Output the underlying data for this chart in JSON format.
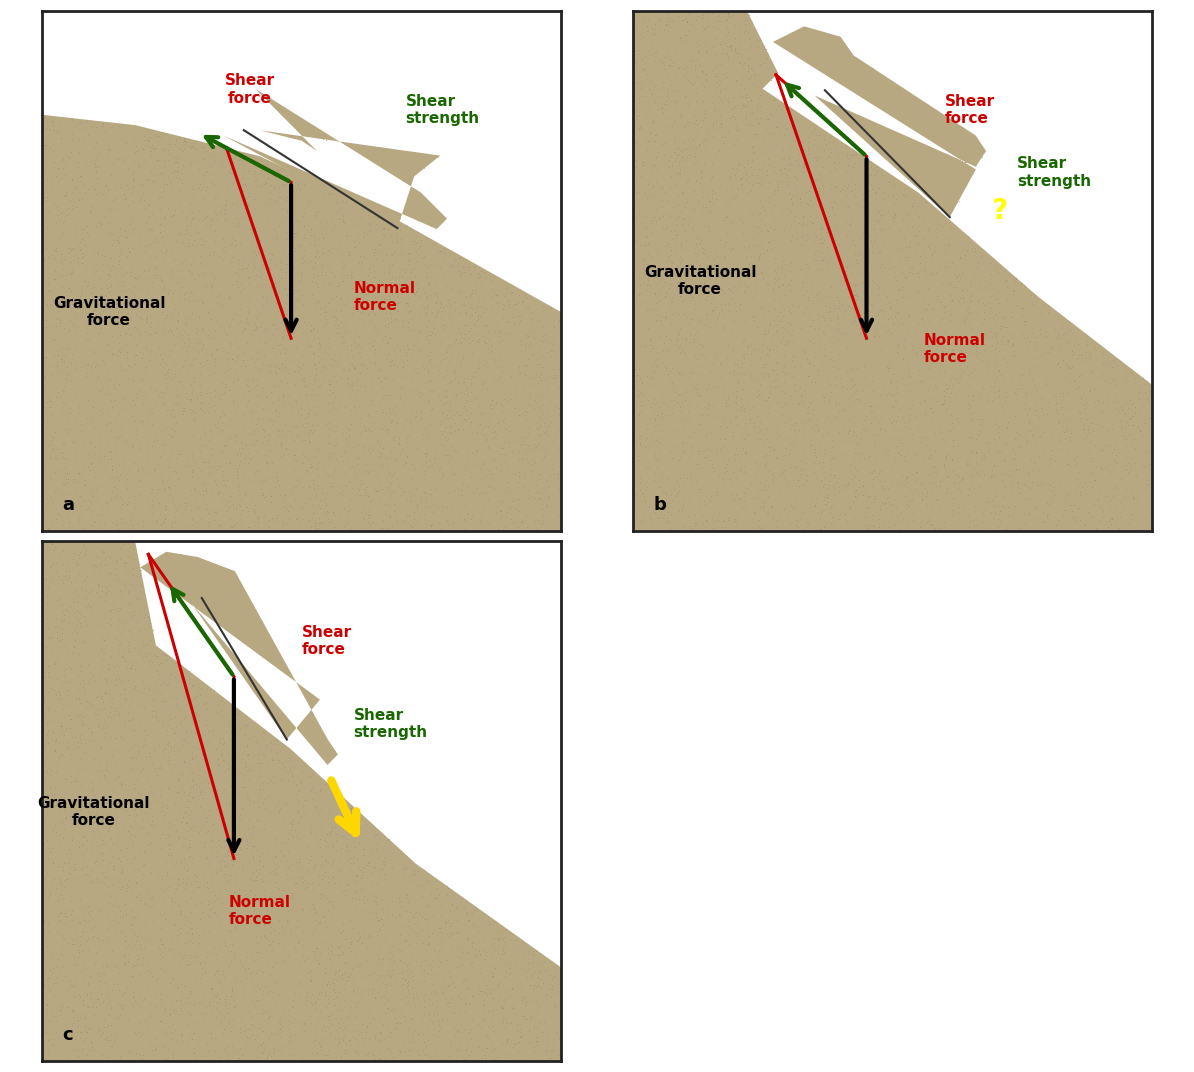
{
  "background_color": "#ffffff",
  "sand_color": "#b8a882",
  "dark_sand": "#9a8a6a",
  "border_color": "#222222",
  "colors": {
    "black": "#000000",
    "red": "#cc0000",
    "green": "#1a6600",
    "yellow": "#ffee00",
    "gold": "#ffd700"
  },
  "panel_positions": {
    "a": [
      0.01,
      0.505,
      0.485,
      0.485
    ],
    "b": [
      0.505,
      0.505,
      0.485,
      0.485
    ],
    "c": [
      0.01,
      0.01,
      0.485,
      0.485
    ]
  },
  "font_size_label": 11,
  "font_size_letter": 13
}
